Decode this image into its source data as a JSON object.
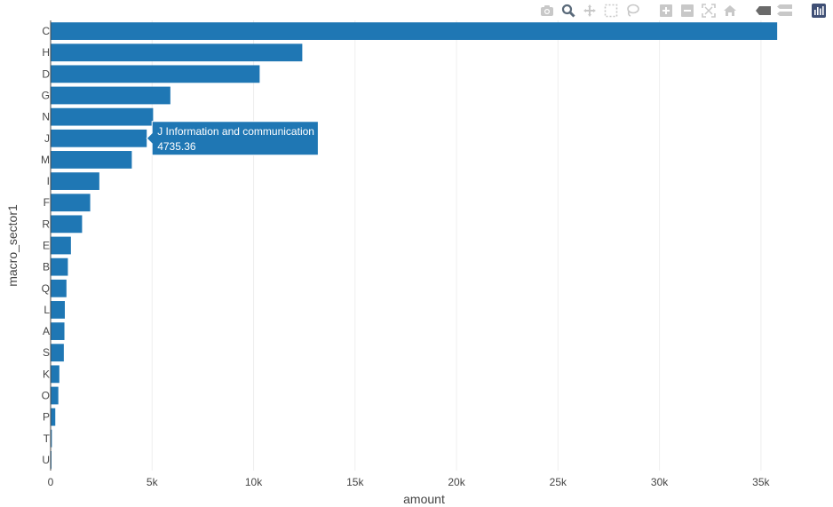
{
  "chart_data": {
    "type": "bar",
    "orientation": "horizontal",
    "categories": [
      "C",
      "H",
      "D",
      "G",
      "N",
      "J",
      "M",
      "I",
      "F",
      "R",
      "E",
      "B",
      "Q",
      "L",
      "A",
      "S",
      "K",
      "O",
      "P",
      "T",
      "U"
    ],
    "values": [
      35800,
      12400,
      10300,
      5900,
      5050,
      4735.36,
      4000,
      2400,
      1950,
      1550,
      1000,
      850,
      780,
      700,
      680,
      650,
      430,
      380,
      230,
      60,
      40
    ],
    "xlabel": "amount",
    "ylabel": "macro_sector1",
    "xlim": [
      0,
      36800
    ],
    "xticks": [
      {
        "value": 0,
        "label": "0"
      },
      {
        "value": 5000,
        "label": "5k"
      },
      {
        "value": 10000,
        "label": "10k"
      },
      {
        "value": 15000,
        "label": "15k"
      },
      {
        "value": 20000,
        "label": "20k"
      },
      {
        "value": 25000,
        "label": "25k"
      },
      {
        "value": 30000,
        "label": "30k"
      },
      {
        "value": 35000,
        "label": "35k"
      }
    ],
    "grid": "vertical",
    "bar_color": "#1f77b4",
    "hover": {
      "category": "J",
      "label": "J Information and communication",
      "value": "4735.36"
    }
  },
  "modebar": {
    "icons": [
      "camera-icon",
      "zoom-icon",
      "pan-icon",
      "box-select-icon",
      "lasso-icon",
      "zoom-in-icon",
      "zoom-out-icon",
      "autoscale-icon",
      "reset-axes-icon",
      "spike-lines-icon",
      "compare-hover-icon",
      "plotly-logo-icon"
    ]
  }
}
